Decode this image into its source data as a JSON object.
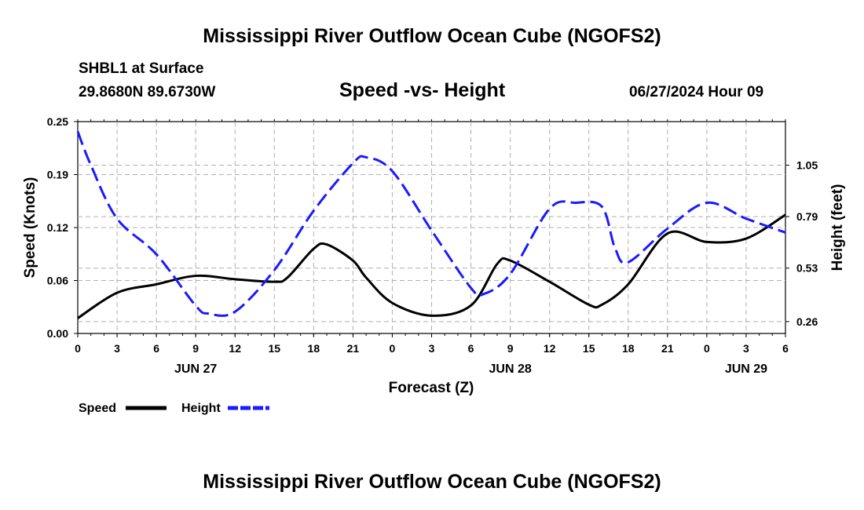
{
  "header": {
    "title": "Mississippi River Outflow Ocean Cube (NGOFS2)",
    "station": "SHBL1 at Surface",
    "coords": "29.8680N  89.6730W",
    "subtitle": "Speed -vs- Height",
    "datetime": "06/27/2024 Hour 09"
  },
  "footer": {
    "title": "Mississippi River Outflow Ocean Cube (NGOFS2)"
  },
  "legend": {
    "speed": "Speed",
    "height": "Height"
  },
  "colors": {
    "speed": "#000000",
    "height": "#1a1aff",
    "grid": "#b0b0b0"
  },
  "chart_data": {
    "type": "line",
    "title": "Speed -vs- Height",
    "xlabel": "Forecast (Z)",
    "ylabel": "Speed (Knots)",
    "ylabel_right": "Height (feet)",
    "x_ticks": [
      "0",
      "3",
      "6",
      "9",
      "12",
      "15",
      "18",
      "21",
      "0",
      "3",
      "6",
      "9",
      "12",
      "15",
      "18",
      "21",
      "0",
      "3",
      "6"
    ],
    "date_labels": [
      {
        "hour": 9,
        "label": "JUN 27"
      },
      {
        "hour": 33,
        "label": "JUN 28"
      },
      {
        "hour": 57,
        "label": "JUN 29"
      }
    ],
    "xlim": [
      0,
      54
    ],
    "ylim": [
      0,
      0.25
    ],
    "y_ticks": [
      "0.00",
      "0.06",
      "0.12",
      "0.19",
      "0.25"
    ],
    "y_tick_values": [
      0,
      0.0625,
      0.125,
      0.1875,
      0.25
    ],
    "ylim_right": [
      0.2,
      1.27
    ],
    "y_ticks_right": [
      "0.26",
      "0.53",
      "0.79",
      "1.05"
    ],
    "y_tick_values_right": [
      0.26,
      0.53,
      0.79,
      1.05
    ],
    "series": [
      {
        "name": "Speed",
        "axis": "left",
        "x": [
          0,
          3,
          6,
          9,
          12,
          15,
          16,
          18,
          19,
          21,
          22,
          24,
          27,
          30,
          32,
          33,
          36,
          39,
          40,
          42,
          45,
          48,
          51,
          54
        ],
        "values": [
          0.018,
          0.048,
          0.058,
          0.068,
          0.064,
          0.061,
          0.066,
          0.1,
          0.105,
          0.086,
          0.066,
          0.036,
          0.021,
          0.033,
          0.082,
          0.086,
          0.061,
          0.034,
          0.034,
          0.058,
          0.118,
          0.108,
          0.112,
          0.14
        ]
      },
      {
        "name": "Height",
        "axis": "right",
        "x": [
          0,
          1,
          3,
          6,
          9,
          10,
          12,
          15,
          18,
          21,
          22,
          24,
          27,
          30,
          31,
          33,
          36,
          38,
          40,
          41,
          42,
          45,
          48,
          51,
          54
        ],
        "values": [
          1.22,
          1.05,
          0.78,
          0.6,
          0.34,
          0.3,
          0.31,
          0.52,
          0.82,
          1.06,
          1.09,
          1.02,
          0.72,
          0.43,
          0.4,
          0.5,
          0.83,
          0.86,
          0.84,
          0.63,
          0.56,
          0.73,
          0.86,
          0.78,
          0.71
        ]
      }
    ]
  }
}
